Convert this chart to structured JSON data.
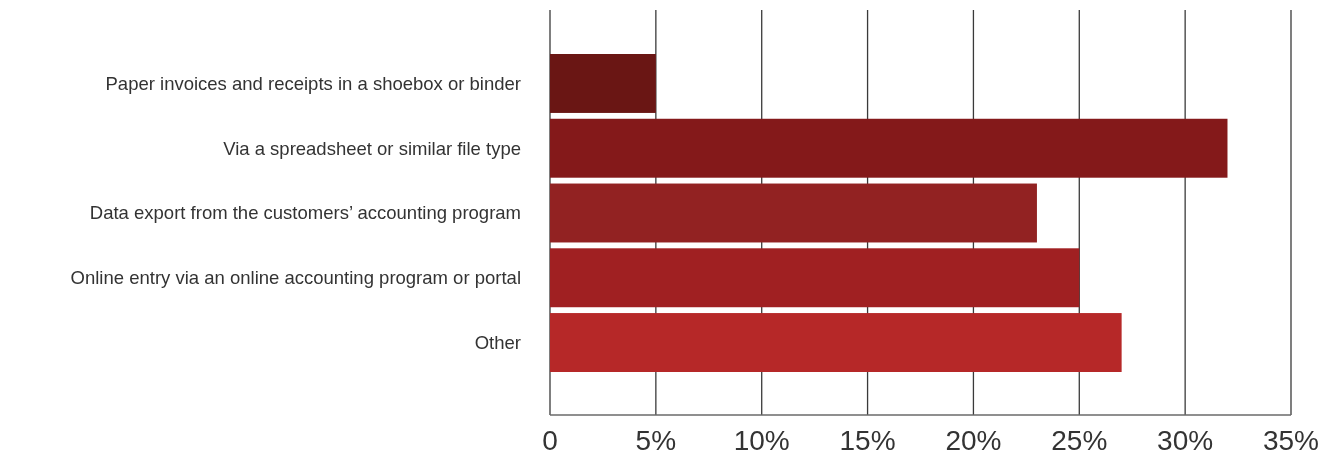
{
  "chart_data": {
    "type": "bar",
    "orientation": "horizontal",
    "categories": [
      "Paper invoices and receipts in a shoebox or binder",
      "Via a spreadsheet or similar file type",
      "Data export from the customers’ accounting program",
      "Online entry via an online accounting program or portal",
      "Other"
    ],
    "values": [
      5,
      32,
      23,
      25,
      27
    ],
    "colors": [
      "#6a1614",
      "#84191a",
      "#922222",
      "#a02022",
      "#b62828"
    ],
    "xlim": [
      0,
      35
    ],
    "xticks": [
      0,
      {
        "value": 5,
        "label": "5%"
      },
      {
        "value": 10,
        "label": "10%"
      },
      {
        "value": 15,
        "label": "15%"
      },
      {
        "value": 20,
        "label": "20%"
      },
      {
        "value": 25,
        "label": "25%"
      },
      {
        "value": 30,
        "label": "30%"
      },
      {
        "value": 35,
        "label": "35%"
      }
    ],
    "grid": "x"
  }
}
